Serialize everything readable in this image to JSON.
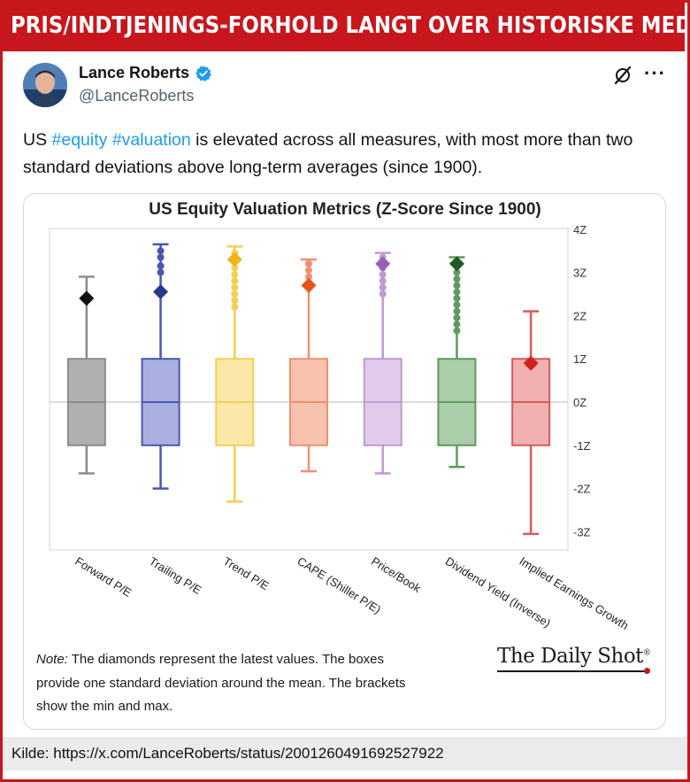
{
  "banner": {
    "title": "PRIS/INDTJENINGS-FORHOLD LANGT OVER HISTORISKE MEDIANER"
  },
  "tweet": {
    "author_name": "Lance Roberts",
    "handle": "@LanceRoberts",
    "text_prefix": "US ",
    "hashtag1": "#equity",
    "space": " ",
    "hashtag2": "#valuation",
    "text_suffix": " is elevated across all measures, with most more than two standard deviations above long-term averages (since 1900).",
    "more_label": "···"
  },
  "note": {
    "label": "Note:",
    "text": " The diamonds represent the latest values. The boxes provide one standard deviation around the mean. The brackets show the min and max."
  },
  "brand": {
    "name": "The Daily Shot",
    "mark": "®"
  },
  "source": {
    "text": "Kilde:  https://x.com/LanceRoberts/status/2001260491692527922"
  },
  "colors": {
    "banner": "#c8161d",
    "link": "#1d9bf0",
    "verified": "#1d9bf0"
  },
  "chart_data": {
    "type": "boxplot",
    "title": "US Equity Valuation Metrics (Z-Score Since 1900)",
    "ylim": [
      -3.3,
      4
    ],
    "yticks": [
      4,
      3,
      2,
      1,
      0,
      -1,
      -2,
      -3
    ],
    "ytick_labels": [
      "4Z",
      "3Z",
      "2Z",
      "1Z",
      "0Z",
      "-1Z",
      "-2Z",
      "-3Z"
    ],
    "y_axis_side": "right",
    "series": [
      {
        "name": "Forward P/E",
        "min": -1.65,
        "q1": -1,
        "median": 0,
        "q3": 1,
        "max": 2.9,
        "latest": 2.4,
        "outliers": [],
        "color": "#8c8c8c",
        "fill": "#b0b0b0",
        "latest_color": "#111111"
      },
      {
        "name": "Trailing P/E",
        "min": -2.0,
        "q1": -1,
        "median": 0,
        "q3": 1,
        "max": 3.65,
        "latest": 2.55,
        "outliers": [
          3.0,
          3.15,
          3.35,
          3.5
        ],
        "color": "#4a55b5",
        "fill": "#a9b0e0",
        "latest_color": "#253a8c"
      },
      {
        "name": "Trend P/E",
        "min": -2.3,
        "q1": -1,
        "median": 0,
        "q3": 1,
        "max": 3.6,
        "latest": 3.3,
        "outliers": [
          2.2,
          2.35,
          2.5,
          2.65,
          2.8,
          2.95,
          3.1,
          3.25,
          3.45
        ],
        "color": "#f2cf55",
        "fill": "#fbe8a8",
        "latest_color": "#f2b21a"
      },
      {
        "name": "CAPE (Shiller P/E)",
        "min": -1.6,
        "q1": -1,
        "median": 0,
        "q3": 1,
        "max": 3.3,
        "latest": 2.7,
        "outliers": [
          2.9,
          3.05,
          3.2
        ],
        "color": "#f19070",
        "fill": "#f8c3ae",
        "latest_color": "#e8521c"
      },
      {
        "name": "Price/Book",
        "min": -1.65,
        "q1": -1,
        "median": 0,
        "q3": 1,
        "max": 3.45,
        "latest": 3.2,
        "outliers": [
          2.5,
          2.65,
          2.8,
          2.95,
          3.1,
          3.35
        ],
        "color": "#c09ad4",
        "fill": "#e0ccea",
        "latest_color": "#9b5fba"
      },
      {
        "name": "Dividend Yield (Inverse)",
        "min": -1.5,
        "q1": -1,
        "median": 0,
        "q3": 1,
        "max": 3.35,
        "latest": 3.2,
        "outliers": [
          1.65,
          1.8,
          1.95,
          2.1,
          2.25,
          2.4,
          2.55,
          2.7,
          2.85,
          3.0,
          3.15
        ],
        "color": "#5f9a5f",
        "fill": "#a9cea9",
        "latest_color": "#1e5a25"
      },
      {
        "name": "Implied Earnings Growth",
        "min": -3.05,
        "q1": -1,
        "median": 0,
        "q3": 1,
        "max": 2.1,
        "latest": 0.9,
        "outliers": [],
        "color": "#d85a5a",
        "fill": "#f2b1b1",
        "latest_color": "#d42020"
      }
    ]
  }
}
